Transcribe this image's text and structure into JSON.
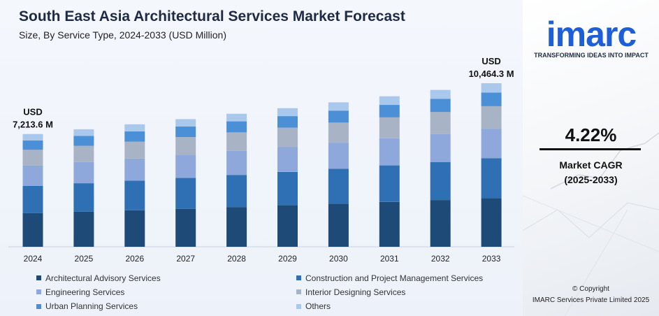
{
  "header": {
    "title": "South East Asia Architectural Services Market Forecast",
    "subtitle": "Size, By Service Type, 2024-2033 (USD Million)"
  },
  "chart_data": {
    "type": "bar",
    "stacked": true,
    "title": "South East Asia Architectural Services Market Forecast",
    "subtitle": "Size, By Service Type, 2024-2033 (USD Million)",
    "xlabel": "",
    "ylabel": "",
    "categories": [
      "2024",
      "2025",
      "2026",
      "2027",
      "2028",
      "2029",
      "2030",
      "2031",
      "2032",
      "2033"
    ],
    "totals": [
      7213.6,
      7517.5,
      7834.2,
      8164.2,
      8508.1,
      8866.5,
      9240.0,
      9629.3,
      10034.9,
      10464.3
    ],
    "series": [
      {
        "name": "Architectural Advisory Services",
        "color": "#1e4a78",
        "values": [
          2150,
          2240,
          2335,
          2430,
          2535,
          2640,
          2752,
          2868,
          2990,
          3118
        ]
      },
      {
        "name": "Construction and Project Management Services",
        "color": "#2f6fb3",
        "values": [
          1750,
          1825,
          1900,
          1981,
          2064,
          2151,
          2242,
          2336,
          2434,
          2538
        ]
      },
      {
        "name": "Engineering Services",
        "color": "#8ea8db",
        "values": [
          1300,
          1355,
          1412,
          1472,
          1534,
          1598,
          1666,
          1736,
          1809,
          1886
        ]
      },
      {
        "name": "Interior Designing Services",
        "color": "#a8b4c6",
        "values": [
          1000,
          1042,
          1086,
          1132,
          1180,
          1230,
          1282,
          1336,
          1392,
          1452
        ]
      },
      {
        "name": "Urban Planning Services",
        "color": "#4b8fd6",
        "values": [
          600,
          625,
          652,
          679,
          708,
          738,
          769,
          801,
          835,
          870
        ]
      },
      {
        "name": "Others",
        "color": "#a9c8ec",
        "values": [
          413.6,
          430.5,
          449.2,
          470.2,
          487.1,
          509.5,
          529.0,
          552.3,
          574.9,
          600.3
        ]
      }
    ],
    "annotations": [
      {
        "category": "2024",
        "line1": "USD",
        "line2": "7,213.6 M"
      },
      {
        "category": "2033",
        "line1": "USD",
        "line2": "10,464.3 M"
      }
    ],
    "grid": false,
    "legend_position": "bottom"
  },
  "sidebar": {
    "logo_text": "imarc",
    "tagline": "TRANSFORMING IDEAS INTO IMPACT",
    "cagr_value": "4.22%",
    "cagr_label": "Market CAGR",
    "cagr_period": "(2025-2033)",
    "copyright_line1": "© Copyright",
    "copyright_line2": "IMARC Services Private Limited 2025",
    "brand_color": "#1e5fd8"
  }
}
